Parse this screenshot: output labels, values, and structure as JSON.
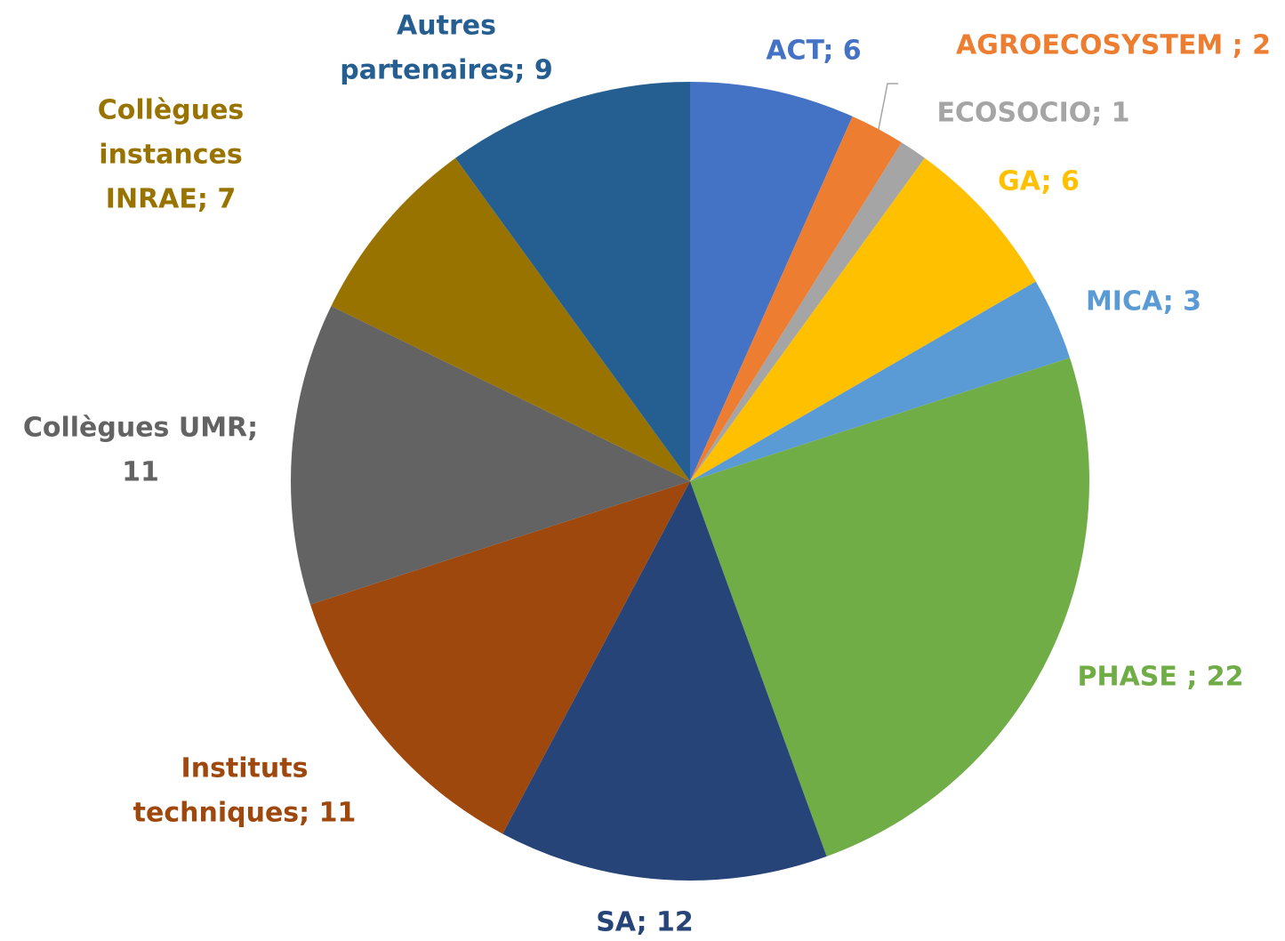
{
  "chart_data": {
    "type": "pie",
    "labels": [
      [
        "ACT; 6"
      ],
      [
        "AGROECOSYSTEM ; 2"
      ],
      [
        "ECOSOCIO; 1"
      ],
      [
        "GA; 6"
      ],
      [
        "MICA; 3"
      ],
      [
        "PHASE ; 22"
      ],
      [
        "SA; 12"
      ],
      [
        "Instituts",
        "techniques; 11"
      ],
      [
        "Collègues UMR;",
        "11"
      ],
      [
        "Collègues",
        "instances",
        "INRAE; 7"
      ],
      [
        "Autres",
        "partenaires; 9"
      ]
    ],
    "values": [
      6,
      2,
      1,
      6,
      3,
      22,
      12,
      11,
      11,
      7,
      9
    ],
    "colors": [
      "#4472c4",
      "#ed7d31",
      "#a5a5a5",
      "#ffc000",
      "#5b9bd5",
      "#70ad47",
      "#264478",
      "#9e480e",
      "#636363",
      "#997300",
      "#255e91"
    ],
    "label_colors": [
      "#4472c4",
      "#ed7d31",
      "#a5a5a5",
      "#ffc000",
      "#5b9bd5",
      "#70ad47",
      "#264478",
      "#9e480e",
      "#636363",
      "#997300",
      "#255e91"
    ]
  }
}
